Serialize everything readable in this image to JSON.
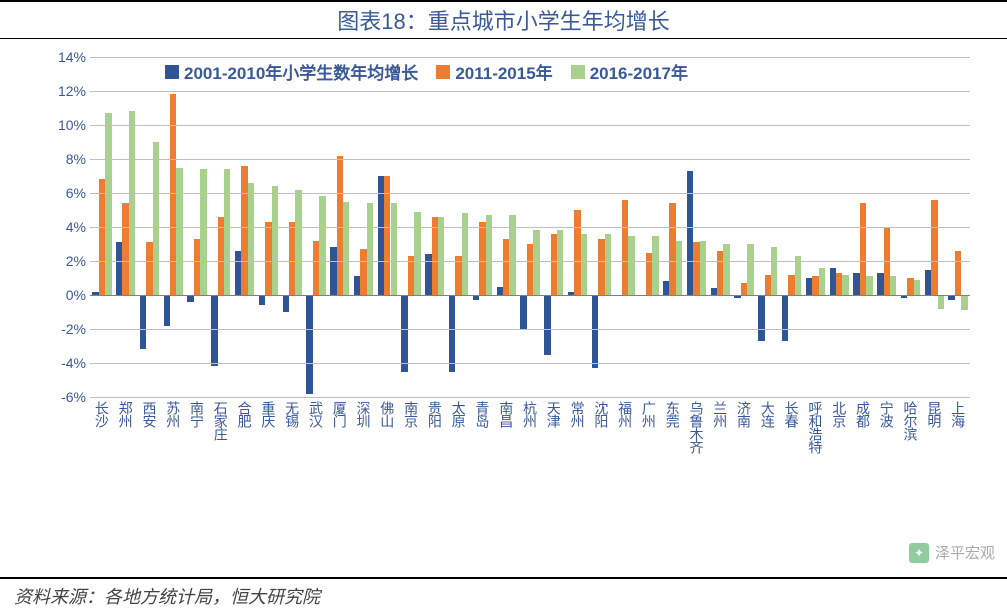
{
  "title": "图表18：重点城市小学生年均增长",
  "source": "资料来源：各地方统计局，恒大研究院",
  "watermark": "泽平宏观",
  "chart": {
    "type": "bar",
    "ylim": [
      -6,
      14
    ],
    "ytick_step": 2,
    "ytick_suffix": "%",
    "grid_color": "#bfbfbf",
    "background_color": "#ffffff",
    "axis_font_color": "#3a5998",
    "axis_fontsize": 14,
    "title_color": "#3a5998",
    "title_fontsize": 22,
    "legend_fontsize": 17,
    "bar_width_ratio": 0.27,
    "series": [
      {
        "label": "2001-2010年小学生数年均增长",
        "color": "#2f5597"
      },
      {
        "label": "2011-2015年",
        "color": "#ed7d31"
      },
      {
        "label": "2016-2017年",
        "color": "#a9d18e"
      }
    ],
    "categories": [
      "长沙",
      "郑州",
      "西安",
      "苏州",
      "南宁",
      "石家庄",
      "合肥",
      "重庆",
      "无锡",
      "武汉",
      "厦门",
      "深圳",
      "佛山",
      "南京",
      "贵阳",
      "太原",
      "青岛",
      "南昌",
      "杭州",
      "天津",
      "常州",
      "沈阳",
      "福州",
      "广州",
      "东莞",
      "乌鲁木齐",
      "兰州",
      "济南",
      "大连",
      "长春",
      "呼和浩特",
      "北京",
      "成都",
      "宁波",
      "哈尔滨",
      "昆明",
      "上海"
    ],
    "values": [
      [
        0.2,
        3.1,
        -3.2,
        -1.8,
        -0.4,
        -4.2,
        2.6,
        -0.6,
        -1.0,
        -5.8,
        2.8,
        1.1,
        7.0,
        -4.5,
        2.4,
        -4.5,
        -0.3,
        0.5,
        -2.0,
        -3.5,
        0.2,
        -4.3,
        0.0,
        0.0,
        0.8,
        7.3,
        0.4,
        -0.2,
        -2.7,
        -2.7,
        1.0,
        1.6,
        1.3,
        1.3,
        -0.2,
        1.5,
        -0.3
      ],
      [
        6.8,
        5.4,
        3.1,
        11.8,
        3.3,
        4.6,
        7.6,
        4.3,
        4.3,
        3.2,
        8.2,
        2.7,
        7.0,
        2.3,
        4.6,
        2.3,
        4.3,
        3.3,
        3.0,
        3.6,
        5.0,
        3.3,
        5.6,
        2.5,
        5.4,
        3.1,
        2.6,
        0.7,
        1.2,
        1.2,
        1.1,
        1.3,
        5.4,
        4.0,
        1.0,
        5.6,
        2.6
      ],
      [
        10.7,
        10.8,
        9.0,
        7.5,
        7.4,
        7.4,
        6.6,
        6.4,
        6.2,
        5.8,
        5.5,
        5.4,
        5.4,
        4.9,
        4.6,
        4.8,
        4.7,
        4.7,
        3.8,
        3.8,
        3.6,
        3.6,
        3.5,
        3.5,
        3.2,
        3.2,
        3.0,
        3.0,
        2.8,
        2.3,
        1.6,
        1.2,
        1.1,
        1.1,
        0.9,
        -0.8,
        -0.9
      ]
    ]
  }
}
